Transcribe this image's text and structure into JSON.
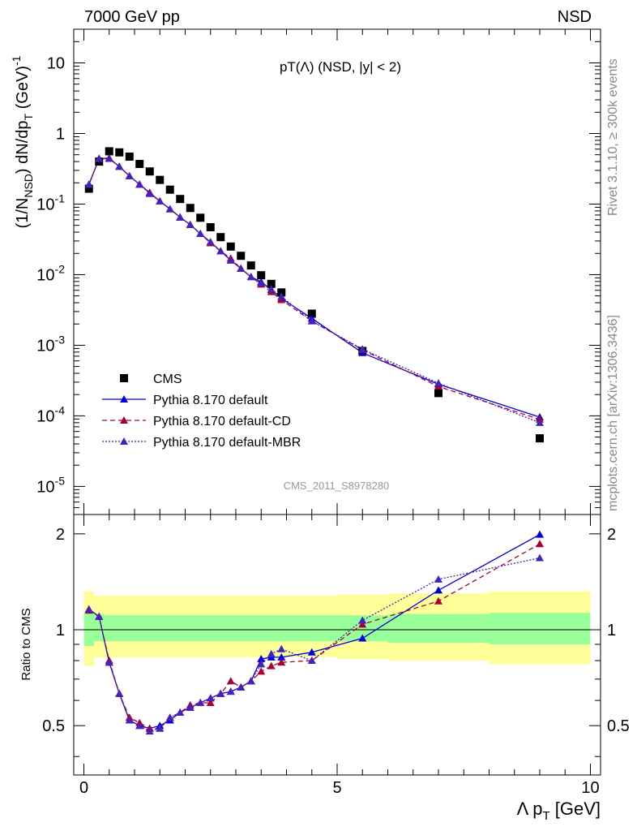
{
  "header": {
    "left": "7000 GeV pp",
    "right": "NSD",
    "plot_title": "pT(Λ) (NSD, |y| < 2)",
    "watermark": "CMS_2011_S8978280"
  },
  "side_text": {
    "rivet": "Rivet 3.1.10, ≥ 300k events",
    "mcplots": "mcplots.cern.ch [arXiv:1306.3436]"
  },
  "chart_data": [
    {
      "type": "scatter",
      "panel": "main",
      "ylabel": "(1/N_NSD) dN/dp_T (GeV)^-1",
      "yscale": "log",
      "ylim": [
        4e-06,
        30
      ],
      "xlim": [
        -0.2,
        10.2
      ],
      "ytick_labels": [
        "10^-5",
        "10^-4",
        "10^-3",
        "10^-2",
        "10^-1",
        "1",
        "10"
      ],
      "legend_position": "lower-left",
      "x": [
        0.1,
        0.3,
        0.5,
        0.7,
        0.9,
        1.1,
        1.3,
        1.5,
        1.7,
        1.9,
        2.1,
        2.3,
        2.5,
        2.7,
        2.9,
        3.1,
        3.3,
        3.5,
        3.7,
        3.9,
        4.5,
        5.5,
        7.0,
        9.0
      ],
      "series": [
        {
          "name": "CMS",
          "color": "#000000",
          "marker": "square",
          "line": "none",
          "values": [
            0.165,
            0.4,
            0.56,
            0.54,
            0.47,
            0.37,
            0.29,
            0.22,
            0.16,
            0.118,
            0.088,
            0.064,
            0.047,
            0.034,
            0.025,
            0.0185,
            0.0135,
            0.0098,
            0.0074,
            0.0056,
            0.0028,
            0.00083,
            0.00021,
            4.8e-05
          ]
        },
        {
          "name": "Pythia 8.170 default",
          "color": "#0000dd",
          "marker": "triangle",
          "line": "solid",
          "values": [
            0.19,
            0.44,
            0.44,
            0.34,
            0.25,
            0.19,
            0.145,
            0.11,
            0.085,
            0.065,
            0.051,
            0.038,
            0.029,
            0.0215,
            0.016,
            0.0122,
            0.0093,
            0.0079,
            0.0061,
            0.0046,
            0.0024,
            0.00078,
            0.00028,
            9.6e-05
          ]
        },
        {
          "name": "Pythia 8.170 default-CD",
          "color": "#aa0033",
          "marker": "triangle",
          "line": "dashed",
          "values": [
            0.19,
            0.44,
            0.45,
            0.34,
            0.25,
            0.19,
            0.145,
            0.11,
            0.085,
            0.065,
            0.051,
            0.038,
            0.028,
            0.0215,
            0.017,
            0.0122,
            0.0093,
            0.0073,
            0.0057,
            0.0044,
            0.0022,
            0.00086,
            0.00026,
            8.9e-05
          ]
        },
        {
          "name": "Pythia 8.170 default-MBR",
          "color": "#4422bb",
          "marker": "triangle",
          "line": "dotted",
          "values": [
            0.19,
            0.44,
            0.44,
            0.34,
            0.25,
            0.19,
            0.14,
            0.11,
            0.085,
            0.065,
            0.051,
            0.038,
            0.029,
            0.0215,
            0.016,
            0.0122,
            0.0093,
            0.0076,
            0.0062,
            0.0049,
            0.0022,
            0.00088,
            0.00029,
            8e-05
          ]
        }
      ]
    },
    {
      "type": "line",
      "panel": "ratio",
      "ylabel": "Ratio to CMS",
      "xlabel": "Λ p_T [GeV]",
      "xlim": [
        -0.2,
        10.2
      ],
      "ylim": [
        0.35,
        2.3
      ],
      "ytick_labels": [
        "0.5",
        "1",
        "2"
      ],
      "xtick_labels": [
        "0",
        "5",
        "10"
      ],
      "x": [
        0.1,
        0.3,
        0.5,
        0.7,
        0.9,
        1.1,
        1.3,
        1.5,
        1.7,
        1.9,
        2.1,
        2.3,
        2.5,
        2.7,
        2.9,
        3.1,
        3.3,
        3.5,
        3.7,
        3.9,
        4.5,
        5.5,
        7.0,
        9.0
      ],
      "bands": {
        "edges": [
          0.0,
          0.2,
          0.4,
          0.6,
          0.8,
          1.0,
          1.2,
          1.4,
          1.6,
          1.8,
          2.0,
          2.2,
          2.4,
          2.6,
          2.8,
          3.0,
          3.2,
          3.4,
          3.6,
          3.8,
          4.0,
          5.0,
          6.0,
          8.0,
          10.0
        ],
        "inner_color": "#99ff99",
        "outer_color": "#ffff99",
        "inner": [
          [
            0.89,
            1.14
          ],
          [
            0.92,
            1.12
          ],
          [
            0.92,
            1.11
          ],
          [
            0.92,
            1.11
          ],
          [
            0.92,
            1.11
          ],
          [
            0.92,
            1.11
          ],
          [
            0.92,
            1.11
          ],
          [
            0.92,
            1.11
          ],
          [
            0.92,
            1.11
          ],
          [
            0.92,
            1.11
          ],
          [
            0.92,
            1.11
          ],
          [
            0.92,
            1.11
          ],
          [
            0.92,
            1.11
          ],
          [
            0.92,
            1.11
          ],
          [
            0.92,
            1.11
          ],
          [
            0.92,
            1.11
          ],
          [
            0.92,
            1.11
          ],
          [
            0.92,
            1.11
          ],
          [
            0.92,
            1.11
          ],
          [
            0.92,
            1.11
          ],
          [
            0.92,
            1.11
          ],
          [
            0.92,
            1.11
          ],
          [
            0.91,
            1.12
          ],
          [
            0.9,
            1.13
          ]
        ],
        "outer": [
          [
            0.77,
            1.32
          ],
          [
            0.82,
            1.28
          ],
          [
            0.82,
            1.28
          ],
          [
            0.82,
            1.28
          ],
          [
            0.82,
            1.28
          ],
          [
            0.82,
            1.28
          ],
          [
            0.82,
            1.28
          ],
          [
            0.82,
            1.28
          ],
          [
            0.82,
            1.28
          ],
          [
            0.82,
            1.28
          ],
          [
            0.82,
            1.28
          ],
          [
            0.82,
            1.28
          ],
          [
            0.82,
            1.28
          ],
          [
            0.82,
            1.28
          ],
          [
            0.82,
            1.28
          ],
          [
            0.82,
            1.28
          ],
          [
            0.82,
            1.28
          ],
          [
            0.82,
            1.28
          ],
          [
            0.82,
            1.28
          ],
          [
            0.82,
            1.28
          ],
          [
            0.82,
            1.28
          ],
          [
            0.81,
            1.29
          ],
          [
            0.8,
            1.3
          ],
          [
            0.78,
            1.32
          ]
        ]
      },
      "series": [
        {
          "name": "Pythia 8.170 default",
          "color": "#0000dd",
          "line": "solid",
          "values": [
            1.16,
            1.1,
            0.79,
            0.63,
            0.52,
            0.5,
            0.49,
            0.5,
            0.52,
            0.55,
            0.57,
            0.59,
            0.61,
            0.63,
            0.64,
            0.66,
            0.69,
            0.81,
            0.82,
            0.82,
            0.85,
            0.94,
            1.33,
            1.99
          ]
        },
        {
          "name": "Pythia 8.170 default-CD",
          "color": "#aa0033",
          "line": "dashed",
          "values": [
            1.15,
            1.1,
            0.8,
            0.63,
            0.53,
            0.51,
            0.49,
            0.49,
            0.53,
            0.55,
            0.58,
            0.59,
            0.59,
            0.63,
            0.69,
            0.66,
            0.69,
            0.74,
            0.77,
            0.79,
            0.8,
            1.04,
            1.23,
            1.86
          ]
        },
        {
          "name": "Pythia 8.170 default-MBR",
          "color": "#4422bb",
          "line": "dotted",
          "values": [
            1.16,
            1.1,
            0.79,
            0.63,
            0.52,
            0.5,
            0.48,
            0.49,
            0.53,
            0.55,
            0.57,
            0.59,
            0.61,
            0.63,
            0.64,
            0.66,
            0.69,
            0.78,
            0.84,
            0.87,
            0.8,
            1.07,
            1.44,
            1.68
          ]
        }
      ],
      "reference_line": 1.0
    }
  ]
}
